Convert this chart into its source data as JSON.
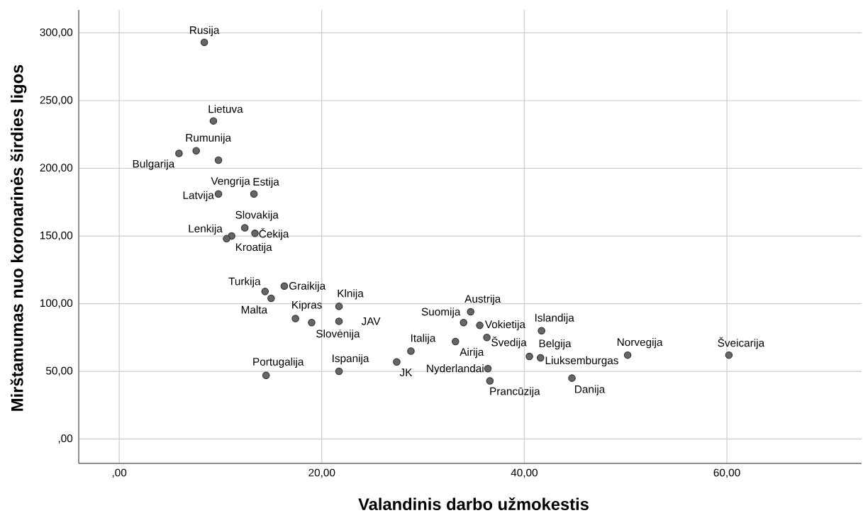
{
  "chart_data": {
    "type": "scatter",
    "xlabel": "Valandinis darbo užmokestis",
    "ylabel": "Mirštamumas nuo koronarinės širdies ligos",
    "x": [
      8.4,
      9.3,
      7.6,
      5.9,
      9.8,
      9.8,
      13.3,
      12.4,
      13.4,
      11.1,
      10.6,
      16.3,
      14.4,
      15.0,
      21.7,
      17.4,
      21.7,
      19.0,
      21.7,
      14.5,
      34.7,
      34.0,
      35.6,
      41.7,
      36.3,
      33.2,
      28.8,
      50.2,
      60.2,
      40.5,
      41.6,
      27.4,
      36.4,
      44.7,
      36.6
    ],
    "values": [
      293,
      235,
      213,
      211,
      206,
      181,
      181,
      156,
      152,
      150,
      148,
      113,
      109,
      104,
      98,
      89,
      87,
      86,
      50,
      47,
      94,
      86,
      84,
      80,
      75,
      72,
      65,
      62,
      62,
      61,
      60,
      57,
      52,
      45,
      43
    ],
    "color": "#666666",
    "marker": "circle",
    "grid": true,
    "xlim": [
      -4,
      73.3
    ],
    "ylim": [
      -18,
      317
    ],
    "xticks": [
      {
        "value": 0,
        "label": ",00"
      },
      {
        "value": 20,
        "label": "20,00"
      },
      {
        "value": 40,
        "label": "40,00"
      },
      {
        "value": 60,
        "label": "60,00"
      }
    ],
    "yticks": [
      {
        "value": 0,
        "label": ",00"
      },
      {
        "value": 50,
        "label": "50,00"
      },
      {
        "value": 100,
        "label": "100,00"
      },
      {
        "value": 150,
        "label": "150,00"
      },
      {
        "value": 200,
        "label": "200,00"
      },
      {
        "value": 250,
        "label": "250,00"
      },
      {
        "value": 300,
        "label": "300,00"
      }
    ],
    "annotations": [
      {
        "text": "Rusija",
        "x": 8.4,
        "y": 293
      },
      {
        "text": "Lietuva",
        "x": 9.3,
        "y": 235
      },
      {
        "text": "Rumunija",
        "x": 7.6,
        "y": 213
      },
      {
        "text": "Bulgarija",
        "x": 5.9,
        "y": 211
      },
      {
        "text": "Vengrija",
        "x": 9.8,
        "y": 181
      },
      {
        "text": "Latvija",
        "x": 9.8,
        "y": 181
      },
      {
        "text": "Estija",
        "x": 13.3,
        "y": 181
      },
      {
        "text": "Slovakija",
        "x": 12.4,
        "y": 156
      },
      {
        "text": "Čekija",
        "x": 13.4,
        "y": 152
      },
      {
        "text": "Kroatija",
        "x": 11.1,
        "y": 150
      },
      {
        "text": "Lenkija",
        "x": 10.6,
        "y": 148
      },
      {
        "text": "Graikija",
        "x": 16.3,
        "y": 113
      },
      {
        "text": "Turkija",
        "x": 14.4,
        "y": 109
      },
      {
        "text": "Malta",
        "x": 15.0,
        "y": 104
      },
      {
        "text": "Klnija",
        "x": 21.7,
        "y": 98
      },
      {
        "text": "Kipras",
        "x": 17.4,
        "y": 89
      },
      {
        "text": "JAV",
        "x": 21.7,
        "y": 87
      },
      {
        "text": "Slovėnija",
        "x": 19.0,
        "y": 86
      },
      {
        "text": "Ispanija",
        "x": 21.7,
        "y": 50
      },
      {
        "text": "Portugalija",
        "x": 14.5,
        "y": 47
      },
      {
        "text": "Austrija",
        "x": 34.7,
        "y": 94
      },
      {
        "text": "Suomija",
        "x": 34.0,
        "y": 86
      },
      {
        "text": "Vokietija",
        "x": 35.6,
        "y": 84
      },
      {
        "text": "Islandija",
        "x": 41.7,
        "y": 80
      },
      {
        "text": "Švedija",
        "x": 36.3,
        "y": 75
      },
      {
        "text": "Airija",
        "x": 33.2,
        "y": 72
      },
      {
        "text": "Italija",
        "x": 28.8,
        "y": 65
      },
      {
        "text": "Norvegija",
        "x": 50.2,
        "y": 62
      },
      {
        "text": "Šveicarija",
        "x": 60.2,
        "y": 62
      },
      {
        "text": "Belgija",
        "x": 40.5,
        "y": 61
      },
      {
        "text": "Liuksemburgas",
        "x": 41.6,
        "y": 60
      },
      {
        "text": "JK",
        "x": 27.4,
        "y": 57
      },
      {
        "text": "Nyderlandai",
        "x": 36.4,
        "y": 52
      },
      {
        "text": "Danija",
        "x": 44.7,
        "y": 45
      },
      {
        "text": "Prancūzija",
        "x": 36.6,
        "y": 43
      }
    ]
  }
}
